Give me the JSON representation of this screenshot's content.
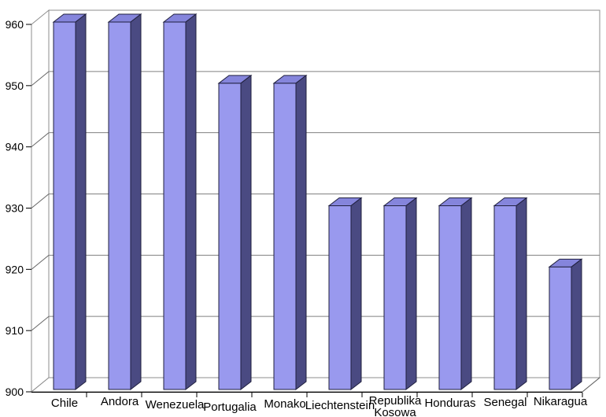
{
  "chart_data": {
    "type": "bar",
    "projection": "3d",
    "title": "",
    "xlabel": "",
    "ylabel": "",
    "categories": [
      "Chile",
      "Andora",
      "Wenezuela",
      "Portugalia",
      "Monako",
      "Liechtenstein",
      "Republika Kosowa",
      "Honduras",
      "Senegal",
      "Nikaragua"
    ],
    "values": [
      960,
      960,
      960,
      950,
      950,
      930,
      930,
      930,
      930,
      920
    ],
    "ylim": [
      900,
      960
    ],
    "ytick_step": 10,
    "yticks": [
      900,
      910,
      920,
      930,
      940,
      950,
      960
    ],
    "grid": true,
    "legend": null,
    "colors": {
      "bar_front": "#9999ee",
      "bar_top": "#8585dc",
      "bar_side": "#4a4a82",
      "bar_edge": "#20203e",
      "gridline": "#808080",
      "wall_edge": "#8c8c8c",
      "tick_diagonal": "#666666",
      "axis_line": "#000000",
      "text": "#000000",
      "background": "#ffffff"
    }
  }
}
